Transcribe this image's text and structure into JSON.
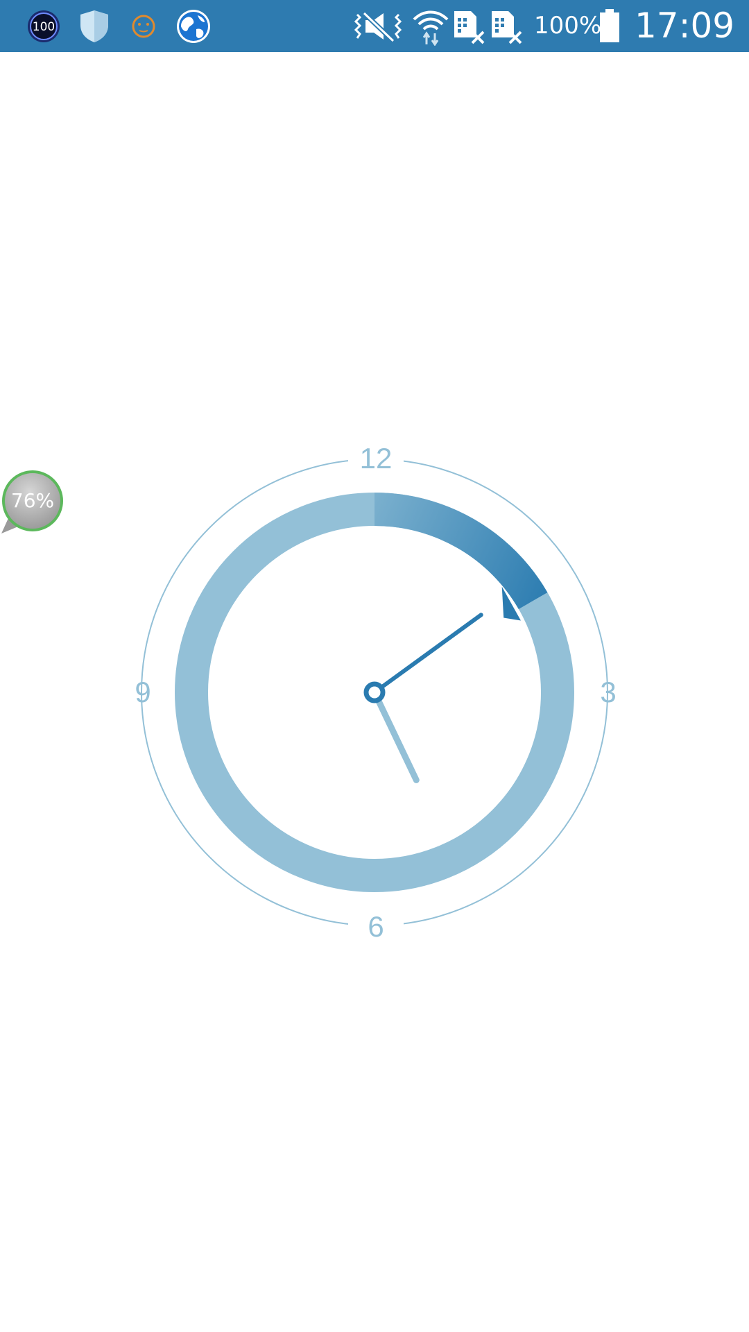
{
  "status_bar": {
    "background": "#2e7bb0",
    "left_icons": [
      "cleaner-100-icon",
      "shield-icon",
      "face-icon",
      "globe-icon"
    ],
    "cleaner_badge_text": "100",
    "right_icons": [
      "vibrate-mute-icon",
      "wifi-icon",
      "no-sim-icon",
      "no-sim-icon"
    ],
    "battery_percent": "100%",
    "time": "17:09"
  },
  "floating_widget": {
    "label": "76%",
    "ring_color": "#5cb85c"
  },
  "clock": {
    "numerals": {
      "top": "12",
      "right": "3",
      "bottom": "6",
      "left": "9"
    },
    "hour": 5,
    "minute": 9,
    "colors": {
      "outer_ring": "#93c0d7",
      "track": "#93c0d7",
      "arc_end": "#2a7bb0",
      "minute_hand": "#2a7bb0",
      "hour_hand": "#93c0d7"
    }
  }
}
